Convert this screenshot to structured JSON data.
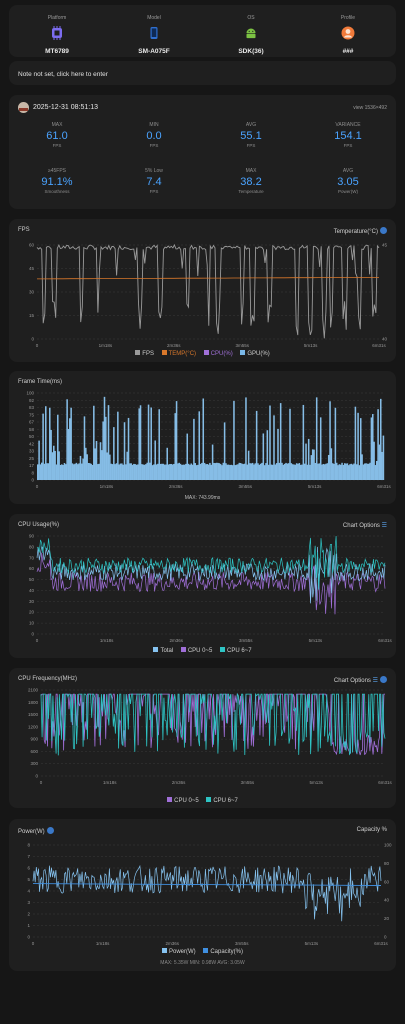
{
  "device": {
    "columns": [
      {
        "label": "Platform",
        "value": "MT6789",
        "icon": "chip-icon"
      },
      {
        "label": "Model",
        "value": "SM-A075F",
        "icon": "phone-icon"
      },
      {
        "label": "OS",
        "value": "SDK(36)",
        "icon": "android-icon"
      },
      {
        "label": "Profile",
        "value": "###",
        "icon": "profile-icon"
      }
    ]
  },
  "note": {
    "text": "Note not set, click here to enter"
  },
  "session": {
    "datetime": "2025-12-31 08:51:13",
    "view": "view 1536×492",
    "stats": [
      {
        "label": "MAX",
        "value": "61.0",
        "unit": "FPS"
      },
      {
        "label": "MIN",
        "value": "0.0",
        "unit": "FPS"
      },
      {
        "label": "AVG",
        "value": "55.1",
        "unit": "FPS"
      },
      {
        "label": "VARIANCE",
        "value": "154.1",
        "unit": "FPS"
      },
      {
        "label": "≥45FPS",
        "value": "91.1%",
        "unit": "Smoothness"
      },
      {
        "label": "5% Low",
        "value": "7.4",
        "unit": "FPS"
      },
      {
        "label": "MAX",
        "value": "38.2",
        "unit": "Temperature"
      },
      {
        "label": "AVG",
        "value": "3.05",
        "unit": "Power(W)"
      }
    ]
  },
  "time_ticks": [
    "0",
    "1m18s",
    "2m36s",
    "3m55s",
    "5m13s",
    "6m31s"
  ],
  "fps_chart": {
    "title": "FPS",
    "right_title": "Temperature(°C)",
    "y_ticks": [
      "60",
      "45",
      "30",
      "15",
      "0"
    ],
    "y_right_ticks": [
      "45",
      "40"
    ],
    "legend": [
      {
        "name": "FPS",
        "color": "#9a9a9a"
      },
      {
        "name": "TEMP(°C)",
        "color": "#d9782b"
      },
      {
        "name": "CPU(%)",
        "color": "#a070d8"
      },
      {
        "name": "GPU(%)",
        "color": "#7ab8e8"
      }
    ],
    "colors": {
      "fps": "#9a9a9a",
      "temp": "#d9782b"
    }
  },
  "frame_chart": {
    "title": "Frame Time(ms)",
    "y_ticks": [
      "100",
      "92",
      "83",
      "75",
      "67",
      "58",
      "50",
      "42",
      "33",
      "25",
      "17",
      "8",
      "0"
    ],
    "footer": "MAX: 743.99ms",
    "colors": {
      "bar": "#86bde6"
    }
  },
  "cpu_usage_chart": {
    "title": "CPU Usage(%)",
    "right_title": "Chart Options",
    "y_ticks": [
      "90",
      "80",
      "70",
      "60",
      "50",
      "40",
      "30",
      "20",
      "10",
      "0"
    ],
    "legend": [
      {
        "name": "Total",
        "color": "#86c3f0"
      },
      {
        "name": "CPU 0~5",
        "color": "#a06fd8"
      },
      {
        "name": "CPU 6~7",
        "color": "#2ec4c4"
      }
    ]
  },
  "cpu_freq_chart": {
    "title": "CPU Frequency(MHz)",
    "right_title": "Chart Options",
    "y_ticks": [
      "2100",
      "1800",
      "1500",
      "1200",
      "900",
      "600",
      "300",
      "0"
    ],
    "legend": [
      {
        "name": "CPU 0~5",
        "color": "#a06fd8"
      },
      {
        "name": "CPU 6~7",
        "color": "#2ec4c4"
      }
    ]
  },
  "power_chart": {
    "title": "Power(W)",
    "right_title": "Capacity %",
    "y_ticks": [
      "8",
      "7",
      "6",
      "5",
      "4",
      "3",
      "2",
      "1",
      "0"
    ],
    "y_right_ticks": [
      "100",
      "80",
      "60",
      "40",
      "20",
      "0"
    ],
    "legend": [
      {
        "name": "Power(W)",
        "color": "#86c3f0"
      },
      {
        "name": "Capacity(%)",
        "color": "#3f8fe0"
      }
    ],
    "footer": "MAX: 5.35W    MIN: 0.98W    AVG: 3.05W"
  }
}
